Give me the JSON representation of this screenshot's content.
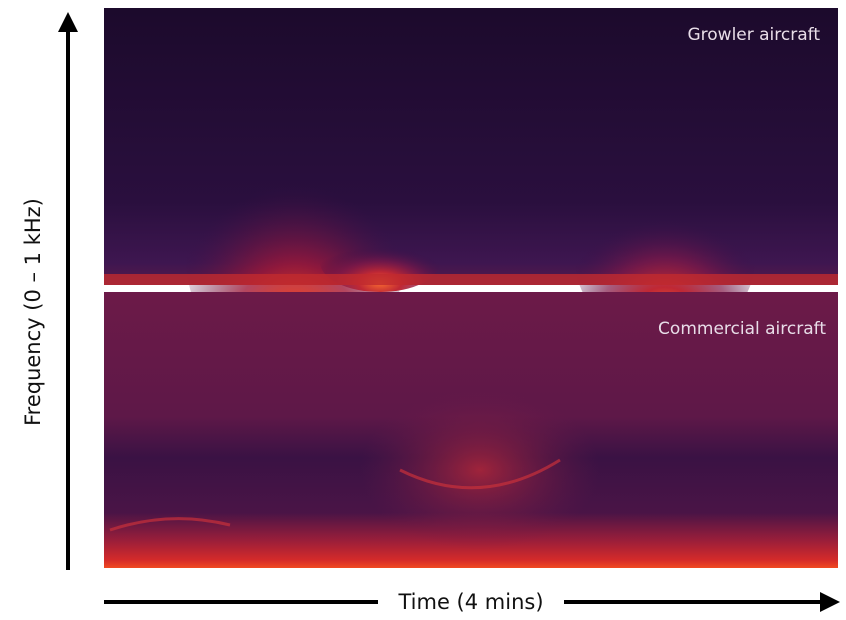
{
  "chart_data": {
    "type": "spectrogram",
    "y_label": "Frequency (0 – 1 kHz)",
    "x_label": "Time (4 mins)",
    "panels": [
      {
        "title": "Growler aircraft"
      },
      {
        "title": "Commercial aircraft"
      }
    ]
  }
}
